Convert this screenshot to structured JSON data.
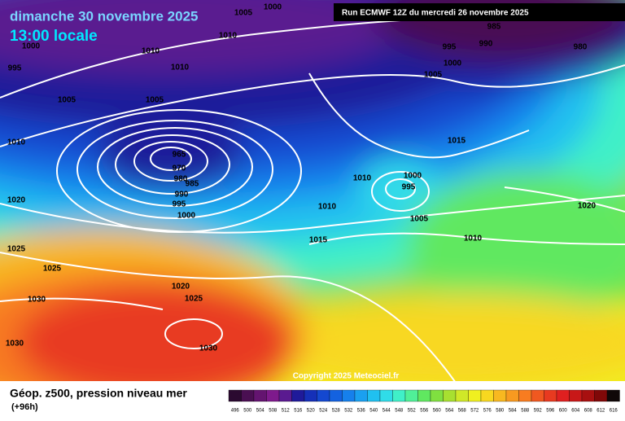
{
  "header": {
    "title": "dimanche 30 novembre 2025",
    "subtitle": "13:00 locale",
    "run": "Run ECMWF 12Z du mercredi 26 novembre 2025"
  },
  "copyright": "Copyright 2025 Meteociel.fr",
  "footer": {
    "label": "Géop. z500, pression niveau mer",
    "lead": "(+96h)"
  },
  "legend": {
    "values": [
      496,
      500,
      504,
      508,
      512,
      516,
      520,
      524,
      528,
      532,
      536,
      540,
      544,
      548,
      552,
      556,
      560,
      564,
      568,
      572,
      576,
      580,
      584,
      588,
      592,
      596,
      600,
      604,
      608,
      612,
      616
    ],
    "colors": [
      "#2b0a30",
      "#4a0f52",
      "#641470",
      "#7e1a8c",
      "#5a1a90",
      "#1f1a9a",
      "#1530b8",
      "#1448d0",
      "#1462e0",
      "#1680ec",
      "#1aa0f0",
      "#20c0f0",
      "#30dce8",
      "#40f0c8",
      "#50f098",
      "#60e860",
      "#80e040",
      "#a8e030",
      "#d0e828",
      "#f0f020",
      "#f8d820",
      "#f8b820",
      "#f89a20",
      "#f87c20",
      "#f05820",
      "#e83a20",
      "#e02020",
      "#c81818",
      "#a81010",
      "#800808",
      "#100808"
    ]
  },
  "isobars": [
    1000,
    1005,
    1010,
    1000,
    995,
    1010,
    1010,
    1005,
    1005,
    1010,
    965,
    970,
    980,
    985,
    990,
    995,
    1000,
    1020,
    1025,
    1025,
    1030,
    1030,
    1020,
    1025,
    1030,
    1015,
    1010,
    1010,
    1000,
    995,
    1005,
    1015,
    1010,
    1020,
    1005,
    995,
    1000,
    990,
    985,
    980
  ]
}
